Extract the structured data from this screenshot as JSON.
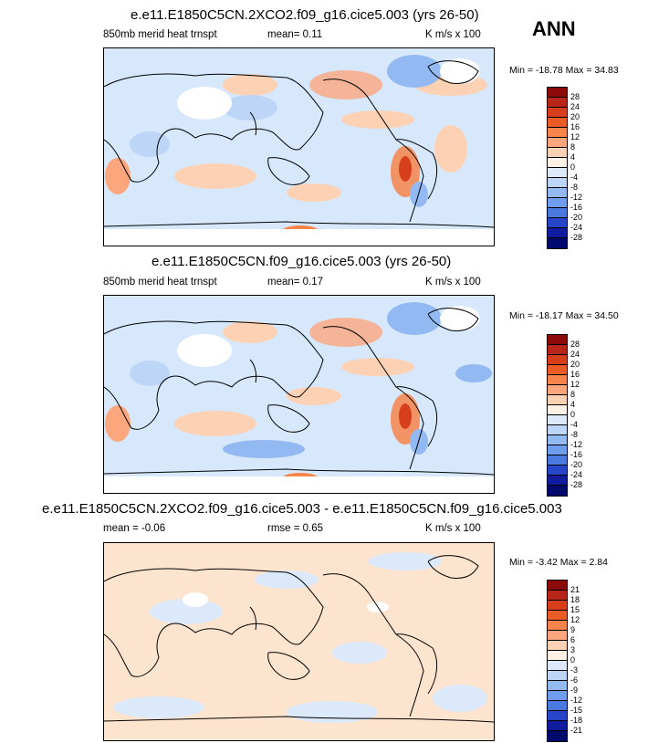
{
  "season": "ANN",
  "panels": [
    {
      "title": "e.e11.E1850C5CN.2XCO2.f09_g16.cice5.003 (yrs 26-50)",
      "field": "850mb merid heat trnspt",
      "stat_text": "mean=   0.11",
      "units": "K m/s x 100",
      "range_text": "Min = -18.78 Max =  34.83",
      "colorbar_labels": [
        "28",
        "24",
        "20",
        "16",
        "12",
        "8",
        "4",
        "0",
        "-4",
        "-8",
        "-12",
        "-16",
        "-20",
        "-24",
        "-28"
      ],
      "colorbar_colors": [
        "#8b0b0b",
        "#b8261a",
        "#d73f1c",
        "#ea5c25",
        "#f7844a",
        "#fca67d",
        "#fdd2b4",
        "#fff1e4",
        "#dce9fb",
        "#bdd6f8",
        "#93b9f2",
        "#6e9ded",
        "#4a7ae0",
        "#2745c8",
        "#0f1c9e",
        "#000a6c"
      ]
    },
    {
      "title": "e.e11.E1850C5CN.f09_g16.cice5.003 (yrs 26-50)",
      "field": "850mb merid heat trnspt",
      "stat_text": "mean=   0.17",
      "units": "K m/s x 100",
      "range_text": "Min = -18.17 Max =  34.50",
      "colorbar_labels": [
        "28",
        "24",
        "20",
        "16",
        "12",
        "8",
        "4",
        "0",
        "-4",
        "-8",
        "-12",
        "-16",
        "-20",
        "-24",
        "-28"
      ],
      "colorbar_colors": [
        "#8b0b0b",
        "#b8261a",
        "#d73f1c",
        "#ea5c25",
        "#f7844a",
        "#fca67d",
        "#fdd2b4",
        "#fff1e4",
        "#dce9fb",
        "#bdd6f8",
        "#93b9f2",
        "#6e9ded",
        "#4a7ae0",
        "#2745c8",
        "#0f1c9e",
        "#000a6c"
      ]
    },
    {
      "title": "e.e11.E1850C5CN.2XCO2.f09_g16.cice5.003 - e.e11.E1850C5CN.f09_g16.cice5.003",
      "field": "",
      "mean_text": "mean =  -0.06",
      "stat_text": "rmse =   0.65",
      "units": "K m/s x 100",
      "range_text": "Min =  -3.42 Max =   2.84",
      "colorbar_labels": [
        "21",
        "18",
        "15",
        "12",
        "9",
        "6",
        "3",
        "0",
        "-3",
        "-6",
        "-9",
        "-12",
        "-15",
        "-18",
        "-21"
      ],
      "colorbar_colors": [
        "#8b0b0b",
        "#b8261a",
        "#d73f1c",
        "#ea5c25",
        "#f7844a",
        "#fca67d",
        "#fdd2b4",
        "#fff1e4",
        "#dce9fb",
        "#bdd6f8",
        "#93b9f2",
        "#6e9ded",
        "#4a7ae0",
        "#2745c8",
        "#0f1c9e",
        "#000a6c"
      ]
    }
  ]
}
